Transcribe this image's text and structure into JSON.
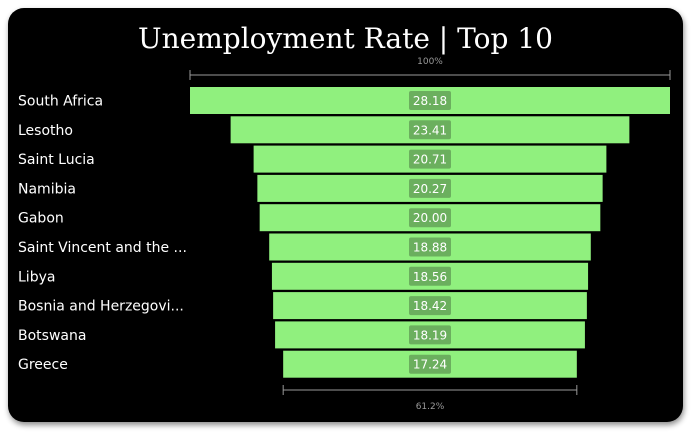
{
  "chart_data": {
    "type": "bar",
    "title": "Unemployment Rate | Top 10",
    "categories": [
      "South Africa",
      "Lesotho",
      "Saint Lucia",
      "Namibia",
      "Gabon",
      "Saint Vincent and the ...",
      "Libya",
      "Bosnia and Herzegovi...",
      "Botswana",
      "Greece"
    ],
    "values": [
      28.18,
      23.41,
      20.71,
      20.27,
      20.0,
      18.88,
      18.56,
      18.42,
      18.19,
      17.24
    ],
    "value_labels": [
      "28.18",
      "23.41",
      "20.71",
      "20.27",
      "20.00",
      "18.88",
      "18.56",
      "18.42",
      "18.19",
      "17.24"
    ],
    "top_percent_label": "100%",
    "bottom_percent_label": "61.2%",
    "bar_color": "#90F07E",
    "value_box_color": "#6BAF5E",
    "background_color": "#000000"
  }
}
